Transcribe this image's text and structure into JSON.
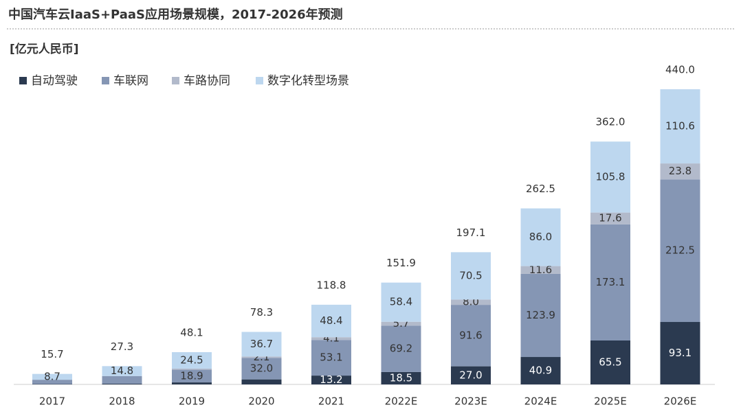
{
  "chart_data": {
    "type": "stacked_bar",
    "title": "中国汽车云IaaS+PaaS应用场景规模，2017-2026年预测",
    "unit": "[亿元人民币]",
    "categories": [
      "2017",
      "2018",
      "2019",
      "2020",
      "2021",
      "2022E",
      "2023E",
      "2024E",
      "2025E",
      "2026E"
    ],
    "series": [
      {
        "name": "自动驾驶",
        "color": "#2b3a50",
        "label_color": "#ffffff",
        "values": [
          0.5,
          1.0,
          3.0,
          7.5,
          13.2,
          18.5,
          27.0,
          40.9,
          65.5,
          93.1
        ],
        "value_labels": [
          null,
          null,
          null,
          null,
          "13.2",
          "18.5",
          "27.0",
          "40.9",
          "65.5",
          "93.1"
        ]
      },
      {
        "name": "车联网",
        "color": "#8596b4",
        "label_color": "#333333",
        "values": [
          6.5,
          11.5,
          18.9,
          32.0,
          53.1,
          69.2,
          91.6,
          123.9,
          173.1,
          212.5
        ],
        "value_labels": [
          null,
          null,
          "18.9",
          "32.0",
          "53.1",
          "69.2",
          "91.6",
          "123.9",
          "173.1",
          "212.5"
        ]
      },
      {
        "name": "车路协同",
        "color": "#b2bacb",
        "label_color": "#333333",
        "values": [
          0.0,
          0.0,
          1.7,
          2.1,
          4.1,
          5.7,
          8.0,
          11.6,
          17.6,
          23.8
        ],
        "value_labels": [
          null,
          null,
          null,
          "2.1",
          "4.1",
          "5.7",
          "8.0",
          "11.6",
          "17.6",
          "23.8"
        ]
      },
      {
        "name": "数字化转型场景",
        "color": "#bdd7ef",
        "label_color": "#333333",
        "values": [
          8.7,
          14.8,
          24.5,
          36.7,
          48.4,
          58.4,
          70.5,
          86.0,
          105.8,
          110.6
        ],
        "value_labels": [
          "8.7",
          "14.8",
          "24.5",
          "36.7",
          "48.4",
          "58.4",
          "70.5",
          "86.0",
          "105.8",
          "110.6"
        ]
      }
    ],
    "totals": [
      15.7,
      27.3,
      48.1,
      78.3,
      118.8,
      151.9,
      197.1,
      262.5,
      362.0,
      440.0
    ],
    "total_labels": [
      "15.7",
      "27.3",
      "48.1",
      "78.3",
      "118.8",
      "151.9",
      "197.1",
      "262.5",
      "362.0",
      "440.0"
    ],
    "ylim": [
      0,
      440
    ]
  }
}
